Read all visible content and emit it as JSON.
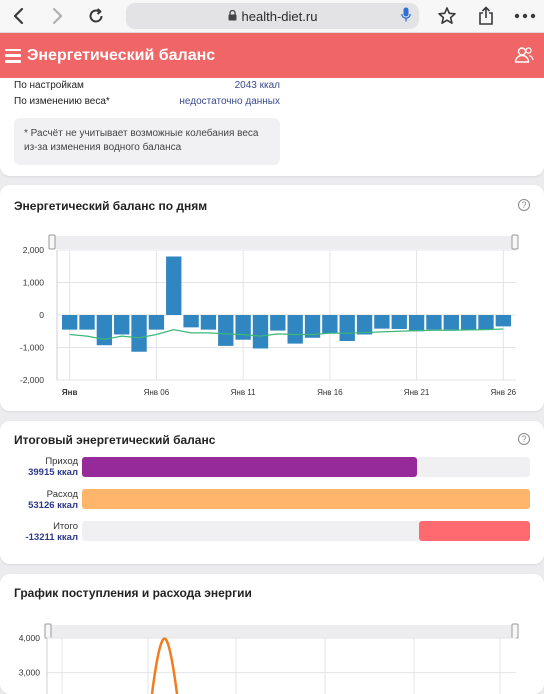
{
  "browser": {
    "url": "health-diet.ru",
    "icons": [
      "back-icon",
      "forward-icon",
      "reload-icon",
      "lock-icon",
      "mic-icon",
      "bookmark-star-icon",
      "share-icon",
      "more-icon"
    ]
  },
  "header": {
    "title": "Энергетический баланс",
    "icons": [
      "menu-icon",
      "users-icon"
    ]
  },
  "summary": {
    "rows": [
      {
        "label": "По настройкам",
        "value": "2043 ккал"
      },
      {
        "label": "По изменению веса*",
        "value": "недостаточно данных"
      }
    ],
    "note": "* Расчёт не учитывает возможные колебания веса из-за изменения водного баланса"
  },
  "daily_card": {
    "title": "Энергетический баланс по дням",
    "help": "?"
  },
  "total_card": {
    "title": "Итоговый энергетический баланс",
    "help": "?",
    "rows": [
      {
        "label": "Приход",
        "value": "39915 ккал",
        "color": "#962a9a"
      },
      {
        "label": "Расход",
        "value": "53126 ккал",
        "color": "#ffb66b"
      },
      {
        "label": "Итого",
        "value": "-13211 ккал",
        "color": "#ff6a70"
      }
    ]
  },
  "flow_card": {
    "title": "График поступления и расхода энергии"
  },
  "colors": {
    "accent": "#f06565",
    "bar": "#2f86c0",
    "trend": "#3cb878",
    "line": "#f07d1f"
  },
  "chart_data": [
    {
      "type": "bar",
      "title": "Энергетический баланс по дням",
      "x_tick_labels": [
        "Янв",
        "Янв 06",
        "Янв 11",
        "Янв 16",
        "Янв 21",
        "Янв 26"
      ],
      "y_tick_labels": [
        "2,000",
        "1,000",
        "0",
        "-1,000",
        "-2,000"
      ],
      "ylim": [
        -2000,
        2000
      ],
      "grid": true,
      "series": [
        {
          "type": "bar",
          "values": [
            -450,
            -450,
            -930,
            -600,
            -1130,
            -450,
            1800,
            -380,
            -450,
            -950,
            -760,
            -1030,
            -480,
            -880,
            -700,
            -570,
            -800,
            -600,
            -420,
            -430,
            -500,
            -450,
            -450,
            -450,
            -450,
            -350
          ]
        },
        {
          "type": "line",
          "values": [
            -600,
            -650,
            -750,
            -650,
            -700,
            -600,
            -450,
            -550,
            -550,
            -580,
            -600,
            -650,
            -580,
            -600,
            -600,
            -560,
            -560,
            -540,
            -520,
            -500,
            -480,
            -470,
            -470,
            -460,
            -450,
            -430
          ]
        }
      ]
    },
    {
      "type": "line",
      "title": "График поступления и расхода энергии",
      "y_tick_labels": [
        "4,000",
        "3,000"
      ],
      "ylim": [
        2700,
        4000
      ],
      "grid": true,
      "series": [
        {
          "type": "line",
          "peak": 3900
        }
      ]
    }
  ]
}
